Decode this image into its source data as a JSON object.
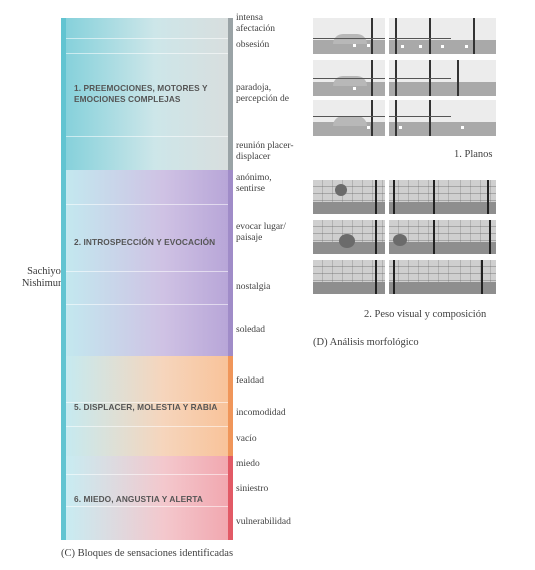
{
  "author": "Sachiyo Nishimura",
  "left_caption": "(C) Bloques de sensaciones identificadas",
  "blocks": [
    {
      "title": "1. PREEMOCIONES, MOTORES Y EMOCIONES COMPLEJAS",
      "bar_color": "#9aa3a6",
      "labels": [
        "intensa afectación",
        "obsesión",
        "paradoja, percepción de",
        "reunión placer-displacer"
      ]
    },
    {
      "title": "2. INTROSPECCIÓN Y EVOCACIÓN",
      "bar_color": "#a08cc8",
      "labels": [
        "anónimo, sentirse",
        "evocar lugar/ paisaje",
        "nostalgia",
        "soledad"
      ]
    },
    {
      "title": "5. DISPLACER, MOLESTIA Y RABIA",
      "bar_color": "#f0965a",
      "labels": [
        "fealdad",
        "incomodidad",
        "vacío"
      ]
    },
    {
      "title": "6. MIEDO, ANGUSTIA Y ALERTA",
      "bar_color": "#e25a66",
      "labels": [
        "miedo",
        "siniestro",
        "vulnerabilidad"
      ]
    }
  ],
  "right": {
    "caption_1": "1. Planos",
    "caption_2": "2. Peso visual y composición",
    "caption_d": "(D) Análisis morfológico"
  }
}
